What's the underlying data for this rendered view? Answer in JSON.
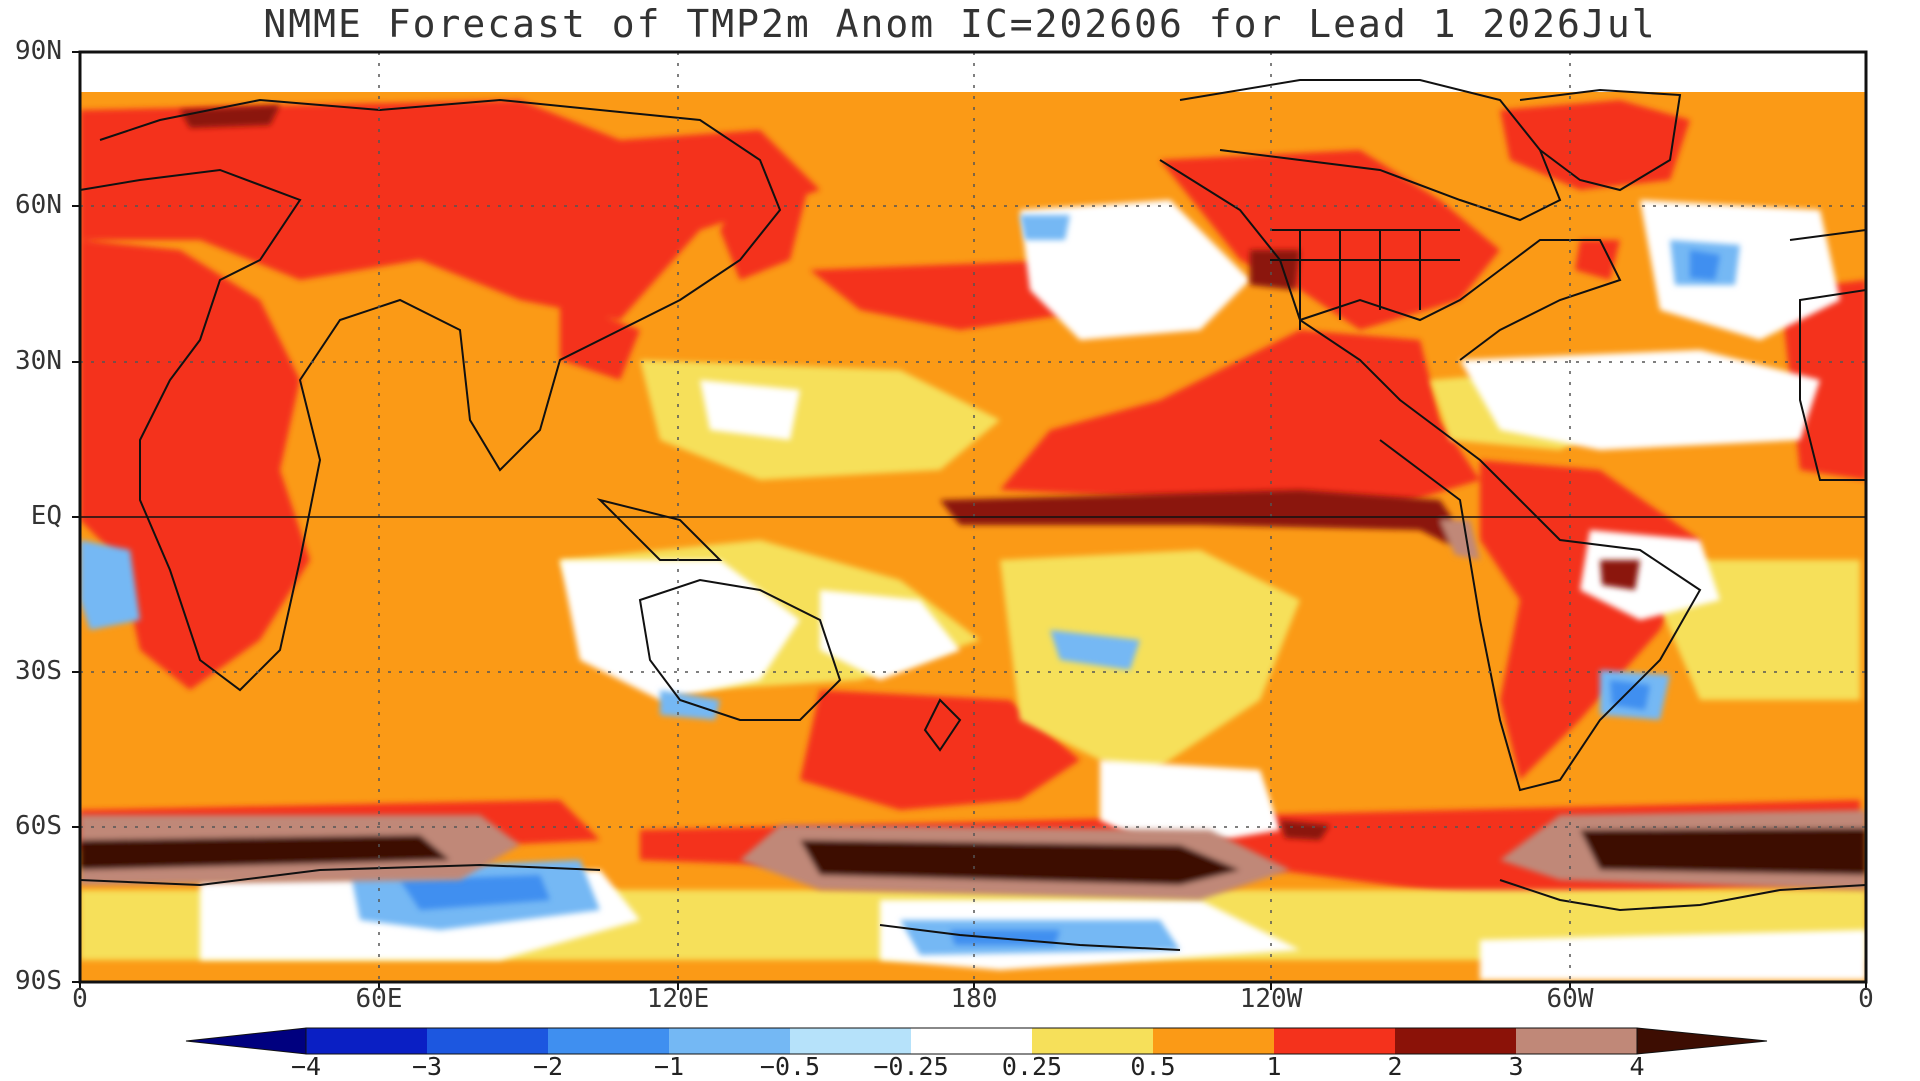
{
  "title": "NMME Forecast of TMP2m Anom IC=202606 for Lead 1 2026Jul",
  "latitude_labels": [
    "90N",
    "60N",
    "30N",
    "EQ",
    "30S",
    "60S",
    "90S"
  ],
  "longitude_labels": [
    "0",
    "60E",
    "120E",
    "180",
    "120W",
    "60W",
    "0"
  ],
  "colorbar": {
    "labels": [
      "-4",
      "-3",
      "-2",
      "-1",
      "-0.5",
      "-0.25",
      "0.25",
      "0.5",
      "1",
      "2",
      "3",
      "4"
    ],
    "colors": [
      "#00007f",
      "#0a1fc4",
      "#1c57e0",
      "#3f8ff0",
      "#74b8f4",
      "#b6e2fa",
      "#ffffff",
      "#f6e05a",
      "#fb9a16",
      "#f4321c",
      "#8b1208",
      "#c08878",
      "#3d0d02"
    ]
  },
  "map": {
    "background_color": "#fb9a16",
    "equator_line": true,
    "gridlines": "dotted"
  }
}
